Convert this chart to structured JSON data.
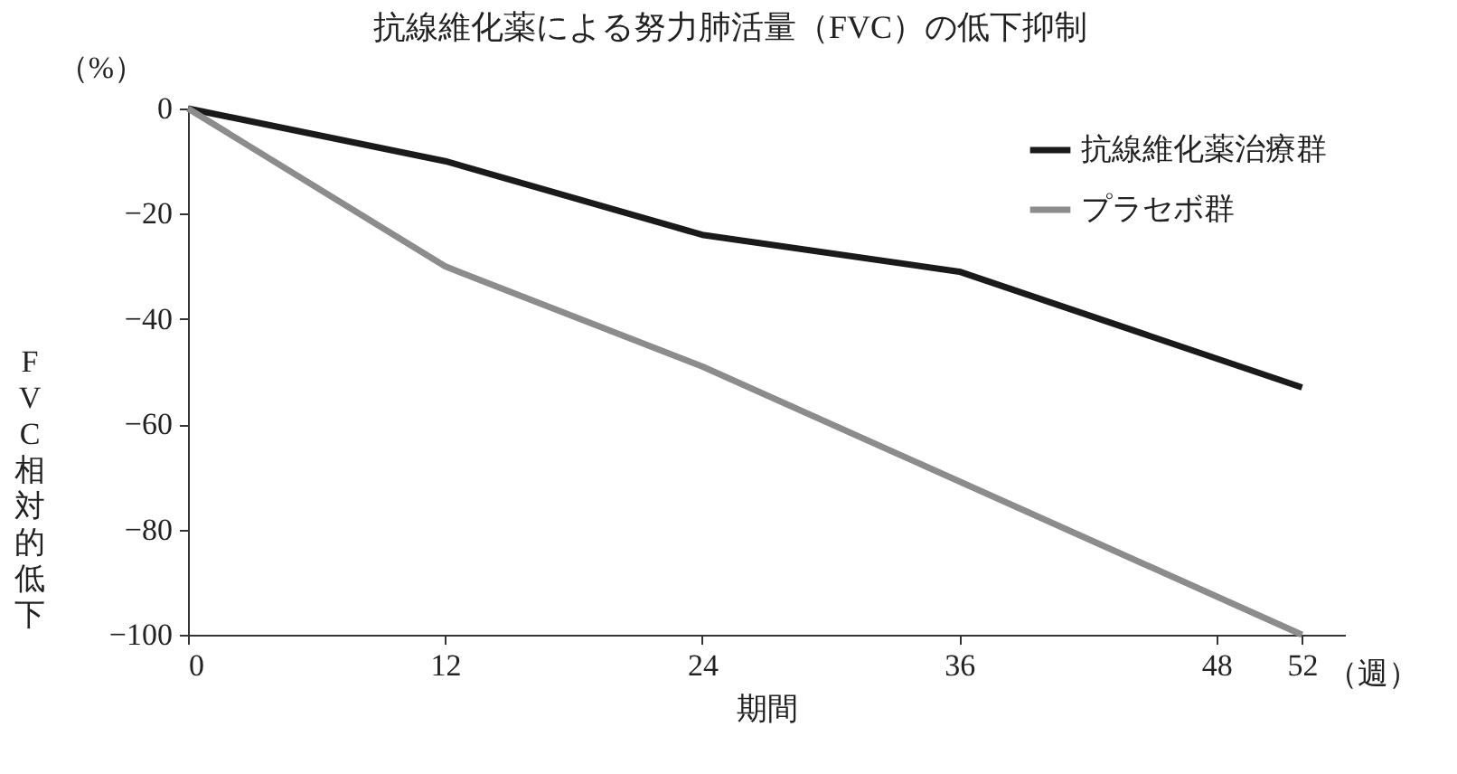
{
  "chart_data": {
    "type": "line",
    "title": "抗線維化薬による努力肺活量（FVC）の低下抑制",
    "xlabel": "期間",
    "ylabel": "FVC相対的低下",
    "annotations": [
      "（%）",
      "（週）"
    ],
    "x": [
      0,
      12,
      24,
      36,
      52
    ],
    "series": [
      {
        "name": "抗線維化薬治療群",
        "color": "#1a1a1a",
        "values": [
          0,
          -10,
          -24,
          -31,
          -53
        ]
      },
      {
        "name": "プラセボ群",
        "color": "#8c8c8c",
        "x": [
          0,
          12,
          24,
          52
        ],
        "values": [
          0,
          -30,
          -49,
          -100
        ]
      }
    ],
    "xlim": [
      0,
      54
    ],
    "xticks": [
      0,
      12,
      24,
      36,
      48,
      52
    ],
    "ylim": [
      -100,
      0
    ],
    "yticks": [
      0,
      -20,
      -40,
      -60,
      -80,
      -100
    ],
    "grid": false,
    "legend": "top right",
    "marker": "none",
    "line_style": "solid"
  }
}
